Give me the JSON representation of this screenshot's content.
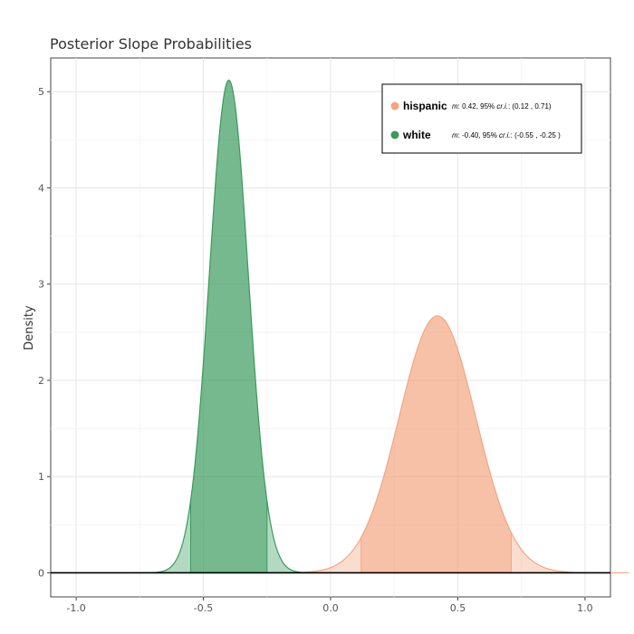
{
  "chart_data": {
    "type": "area",
    "title": "Posterior Slope Probabilities",
    "xlabel": "",
    "ylabel": "Density",
    "xlim": [
      -1.1,
      1.1
    ],
    "ylim": [
      -0.25,
      5.35
    ],
    "x_ticks": [
      -1.0,
      -0.5,
      0.0,
      0.5,
      1.0
    ],
    "x_tick_labels": [
      "-1.0",
      "-0.5",
      "0.0",
      "0.5",
      "1.0"
    ],
    "y_ticks": [
      0,
      1,
      2,
      3,
      4,
      5
    ],
    "y_tick_labels": [
      "0",
      "1",
      "2",
      "3",
      "4",
      "5"
    ],
    "grid": true,
    "legend_position": "top-right",
    "series": [
      {
        "name": "hispanic",
        "color": "#f4a582",
        "mean": 0.42,
        "peak_density": 2.67,
        "ci": [
          0.12,
          0.71
        ],
        "mean_label": "m",
        "mean_value": ": 0.42, 95% ",
        "ci_label": "cr.i.",
        "ci_value": ": (0.12 , 0.71)"
      },
      {
        "name": "white",
        "color": "#3a9a5b",
        "mean": -0.4,
        "peak_density": 5.12,
        "ci": [
          -0.55,
          -0.25
        ],
        "mean_label": "m",
        "mean_value": ": -0.40, 95% ",
        "ci_label": "cr.i.",
        "ci_value": ": (-0.55 , -0.25 )"
      }
    ]
  }
}
